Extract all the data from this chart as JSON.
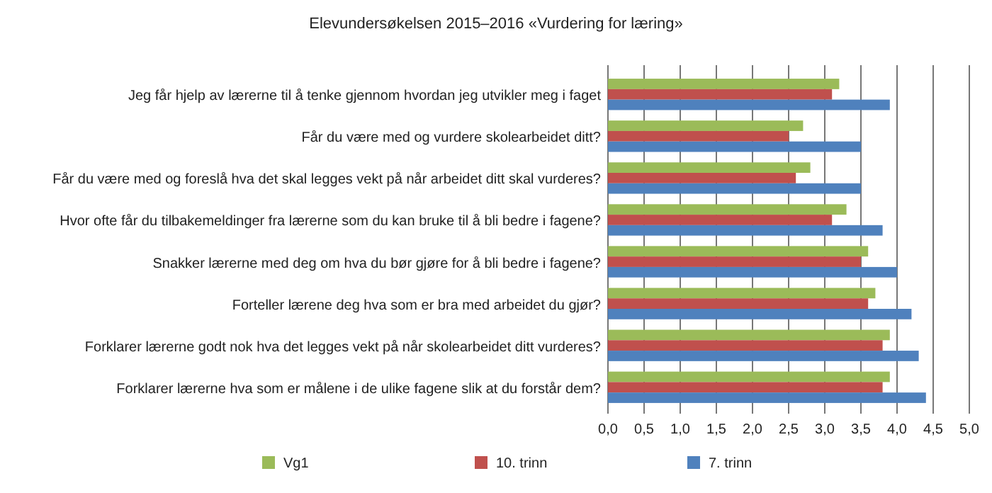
{
  "chart_data": {
    "type": "bar",
    "orientation": "horizontal",
    "title": "Elevundersøkelsen 2015–2016 «Vurdering for læring»",
    "categories": [
      "Jeg får hjelp av lærerne til å tenke gjennom hvordan jeg utvikler meg i faget",
      "Får du være med og vurdere skolearbeidet ditt?",
      "Får du være med og foreslå hva det skal legges vekt på når arbeidet ditt skal vurderes?",
      "Hvor ofte får du tilbakemeldinger fra lærerne som du kan bruke til å bli bedre i fagene?",
      "Snakker lærerne med deg om hva du bør gjøre for å bli bedre i fagene?",
      "Forteller lærene deg hva som er bra med arbeidet du gjør?",
      "Forklarer lærerne godt nok hva det legges vekt på når skolearbeidet ditt vurderes?",
      "Forklarer lærerne hva som er målene i de ulike fagene slik at du forstår dem?"
    ],
    "series": [
      {
        "name": "Vg1",
        "color": "#9bbb59",
        "values": [
          3.2,
          2.7,
          2.8,
          3.3,
          3.6,
          3.7,
          3.9,
          3.9
        ]
      },
      {
        "name": "10. trinn",
        "color": "#c0504d",
        "values": [
          3.1,
          2.5,
          2.6,
          3.1,
          3.5,
          3.6,
          3.8,
          3.8
        ]
      },
      {
        "name": "7. trinn",
        "color": "#4f81bd",
        "values": [
          3.9,
          3.5,
          3.5,
          3.8,
          4.0,
          4.2,
          4.3,
          4.4
        ]
      }
    ],
    "xlim": [
      0,
      5
    ],
    "xticks": [
      {
        "value": 0,
        "label": "0,0"
      },
      {
        "value": 0.5,
        "label": "0,5"
      },
      {
        "value": 1,
        "label": "1,0"
      },
      {
        "value": 1.5,
        "label": "1,5"
      },
      {
        "value": 2,
        "label": "2,0"
      },
      {
        "value": 2.5,
        "label": "2,5"
      },
      {
        "value": 3,
        "label": "3,0"
      },
      {
        "value": 3.5,
        "label": "3,5"
      },
      {
        "value": 4,
        "label": "4,0"
      },
      {
        "value": 4.5,
        "label": "4,5"
      },
      {
        "value": 5,
        "label": "5,0"
      }
    ],
    "grid": "x",
    "legend": "bottom"
  }
}
